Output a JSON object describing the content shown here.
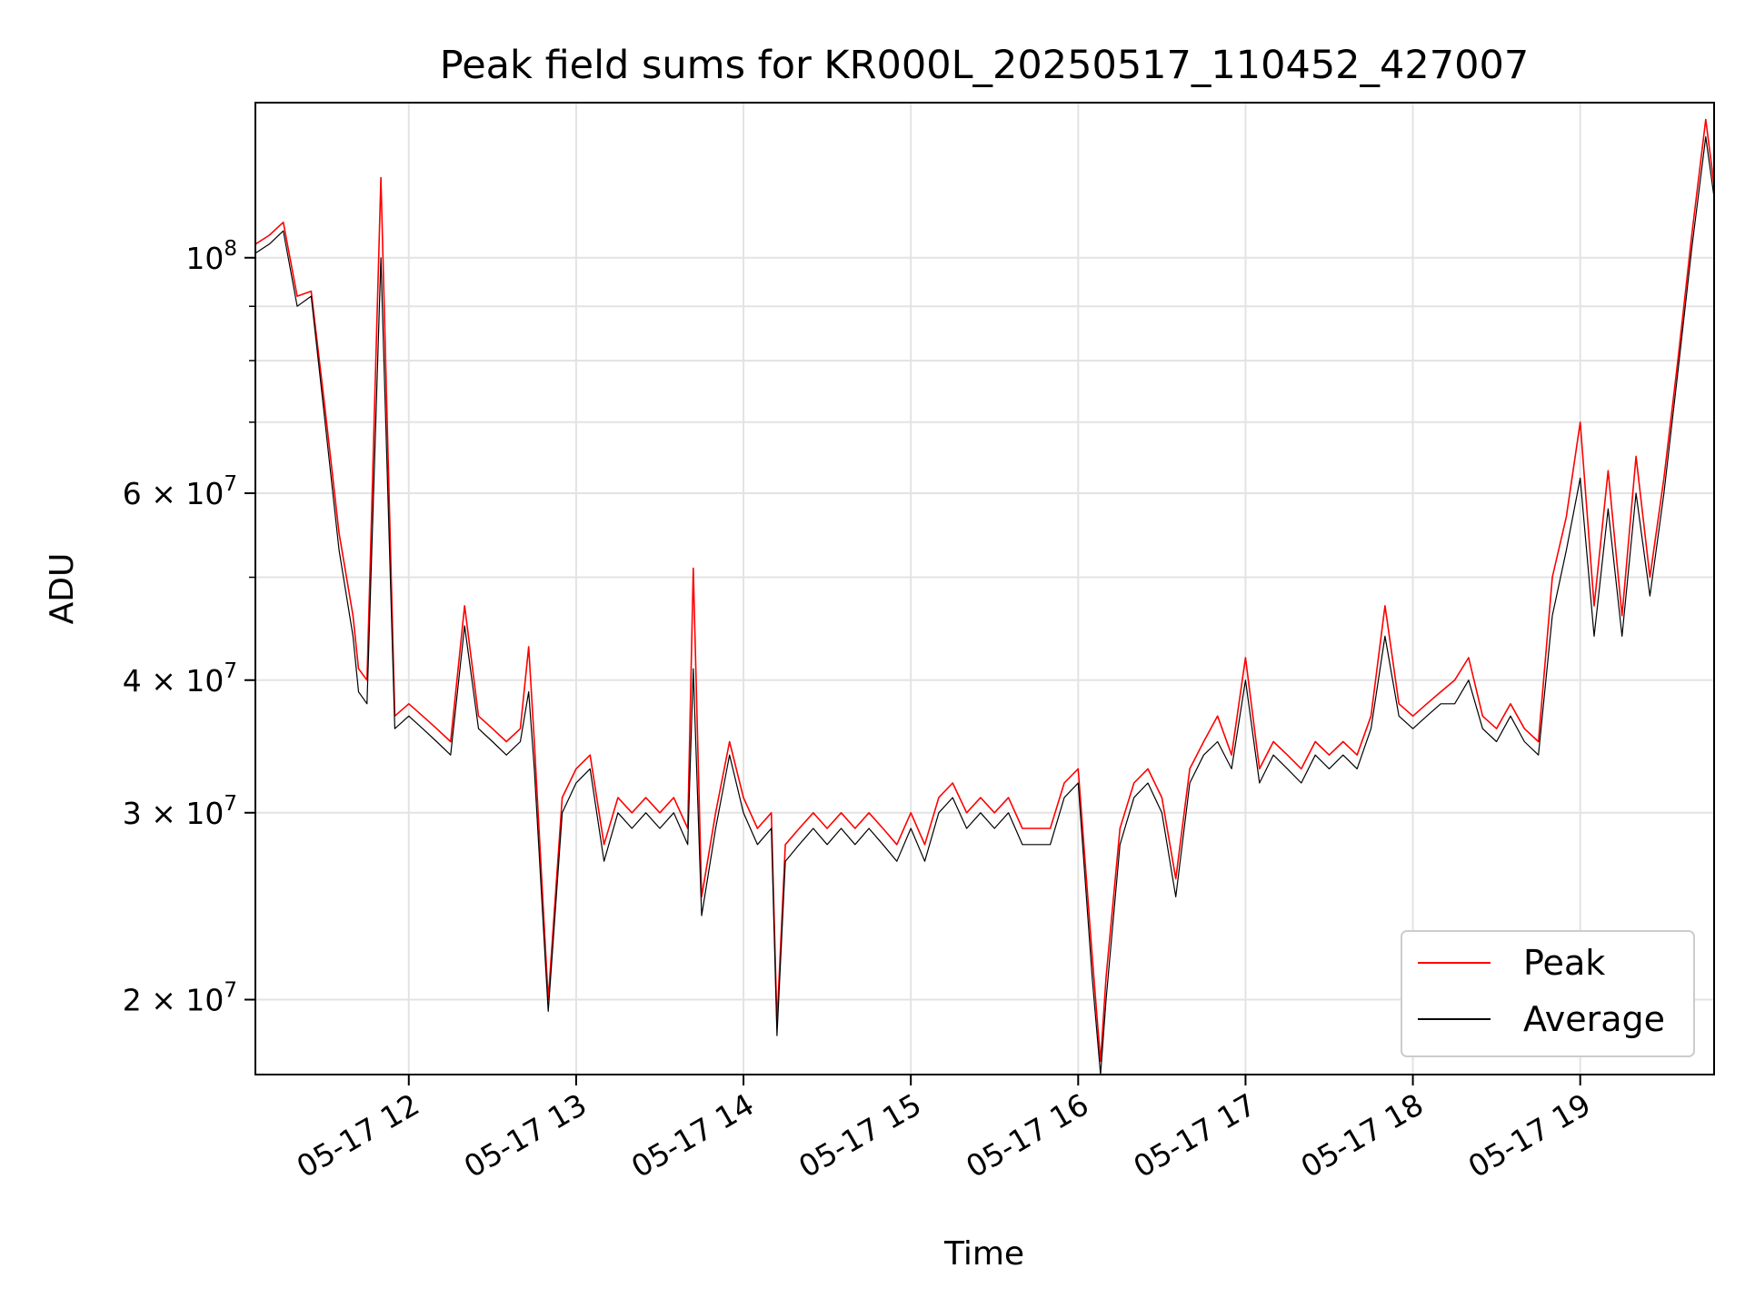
{
  "chart_data": {
    "type": "line",
    "title": "Peak field sums for KR000L_20250517_110452_427007",
    "xlabel": "Time",
    "ylabel": "ADU",
    "yscale": "log",
    "xlim": [
      "05-17 11:05",
      "05-17 19:48"
    ],
    "ylim": [
      17000000,
      140000000
    ],
    "grid": true,
    "legend_position": "lower right",
    "x_ticks": [
      "05-17 12",
      "05-17 13",
      "05-17 14",
      "05-17 15",
      "05-17 16",
      "05-17 17",
      "05-17 18",
      "05-17 19"
    ],
    "y_tick_labels": [
      {
        "value": 100000000,
        "mantissa": "10",
        "exp": "8",
        "sci": false
      },
      {
        "value": 60000000,
        "mantissa": "6 × 10",
        "exp": "7",
        "sci": true
      },
      {
        "value": 40000000,
        "mantissa": "4 × 10",
        "exp": "7",
        "sci": true
      },
      {
        "value": 30000000,
        "mantissa": "3 × 10",
        "exp": "7",
        "sci": true
      },
      {
        "value": 20000000,
        "mantissa": "2 × 10",
        "exp": "7",
        "sci": true
      }
    ],
    "y_minor_gridlines": [
      20000000,
      30000000,
      40000000,
      50000000,
      60000000,
      70000000,
      80000000,
      90000000,
      100000000
    ],
    "x": [
      "05-17 11:05",
      "05-17 11:10",
      "05-17 11:15",
      "05-17 11:20",
      "05-17 11:25",
      "05-17 11:30",
      "05-17 11:35",
      "05-17 11:40",
      "05-17 11:42",
      "05-17 11:45",
      "05-17 11:50",
      "05-17 11:55",
      "05-17 12:00",
      "05-17 12:05",
      "05-17 12:10",
      "05-17 12:15",
      "05-17 12:20",
      "05-17 12:25",
      "05-17 12:30",
      "05-17 12:35",
      "05-17 12:40",
      "05-17 12:43",
      "05-17 12:45",
      "05-17 12:50",
      "05-17 12:55",
      "05-17 13:00",
      "05-17 13:05",
      "05-17 13:10",
      "05-17 13:15",
      "05-17 13:20",
      "05-17 13:25",
      "05-17 13:30",
      "05-17 13:35",
      "05-17 13:40",
      "05-17 13:42",
      "05-17 13:45",
      "05-17 13:50",
      "05-17 13:55",
      "05-17 14:00",
      "05-17 14:05",
      "05-17 14:10",
      "05-17 14:12",
      "05-17 14:15",
      "05-17 14:20",
      "05-17 14:25",
      "05-17 14:30",
      "05-17 14:35",
      "05-17 14:40",
      "05-17 14:45",
      "05-17 14:50",
      "05-17 14:55",
      "05-17 15:00",
      "05-17 15:05",
      "05-17 15:10",
      "05-17 15:15",
      "05-17 15:20",
      "05-17 15:25",
      "05-17 15:30",
      "05-17 15:35",
      "05-17 15:40",
      "05-17 15:45",
      "05-17 15:50",
      "05-17 15:55",
      "05-17 16:00",
      "05-17 16:05",
      "05-17 16:08",
      "05-17 16:10",
      "05-17 16:15",
      "05-17 16:20",
      "05-17 16:25",
      "05-17 16:30",
      "05-17 16:35",
      "05-17 16:40",
      "05-17 16:45",
      "05-17 16:50",
      "05-17 16:55",
      "05-17 17:00",
      "05-17 17:05",
      "05-17 17:10",
      "05-17 17:15",
      "05-17 17:20",
      "05-17 17:25",
      "05-17 17:30",
      "05-17 17:35",
      "05-17 17:40",
      "05-17 17:45",
      "05-17 17:50",
      "05-17 17:55",
      "05-17 18:00",
      "05-17 18:05",
      "05-17 18:10",
      "05-17 18:15",
      "05-17 18:20",
      "05-17 18:25",
      "05-17 18:30",
      "05-17 18:35",
      "05-17 18:40",
      "05-17 18:45",
      "05-17 18:50",
      "05-17 18:55",
      "05-17 19:00",
      "05-17 19:05",
      "05-17 19:10",
      "05-17 19:15",
      "05-17 19:20",
      "05-17 19:25",
      "05-17 19:30",
      "05-17 19:35",
      "05-17 19:40",
      "05-17 19:45",
      "05-17 19:48"
    ],
    "series": [
      {
        "name": "Peak",
        "color": "#ff0000",
        "values": [
          103000000,
          105000000,
          108000000,
          92000000,
          93000000,
          72000000,
          55000000,
          46000000,
          41000000,
          40000000,
          119000000,
          37000000,
          38000000,
          37000000,
          36000000,
          35000000,
          47000000,
          37000000,
          36000000,
          35000000,
          36000000,
          43000000,
          35000000,
          20000000,
          31000000,
          33000000,
          34000000,
          28000000,
          31000000,
          30000000,
          31000000,
          30000000,
          31000000,
          29000000,
          51000000,
          25000000,
          30000000,
          35000000,
          31000000,
          29000000,
          30000000,
          19000000,
          28000000,
          29000000,
          30000000,
          29000000,
          30000000,
          29000000,
          30000000,
          29000000,
          28000000,
          30000000,
          28000000,
          31000000,
          32000000,
          30000000,
          31000000,
          30000000,
          31000000,
          29000000,
          29000000,
          29000000,
          32000000,
          33000000,
          22000000,
          17500000,
          21000000,
          29000000,
          32000000,
          33000000,
          31000000,
          26000000,
          33000000,
          35000000,
          37000000,
          34000000,
          42000000,
          33000000,
          35000000,
          34000000,
          33000000,
          35000000,
          34000000,
          35000000,
          34000000,
          37000000,
          47000000,
          38000000,
          37000000,
          38000000,
          39000000,
          40000000,
          42000000,
          37000000,
          36000000,
          38000000,
          36000000,
          35000000,
          50000000,
          57000000,
          70000000,
          47000000,
          63000000,
          46000000,
          65000000,
          50000000,
          62000000,
          80000000,
          105000000,
          135000000,
          117000000
        ]
      },
      {
        "name": "Average",
        "color": "#000000",
        "values": [
          101000000,
          103000000,
          106000000,
          90000000,
          92000000,
          70000000,
          53000000,
          44000000,
          39000000,
          38000000,
          100000000,
          36000000,
          37000000,
          36000000,
          35000000,
          34000000,
          45000000,
          36000000,
          35000000,
          34000000,
          35000000,
          39000000,
          33000000,
          19500000,
          30000000,
          32000000,
          33000000,
          27000000,
          30000000,
          29000000,
          30000000,
          29000000,
          30000000,
          28000000,
          41000000,
          24000000,
          29000000,
          34000000,
          30000000,
          28000000,
          29000000,
          18500000,
          27000000,
          28000000,
          29000000,
          28000000,
          29000000,
          28000000,
          29000000,
          28000000,
          27000000,
          29000000,
          27000000,
          30000000,
          31000000,
          29000000,
          30000000,
          29000000,
          30000000,
          28000000,
          28000000,
          28000000,
          31000000,
          32000000,
          21000000,
          17000000,
          20000000,
          28000000,
          31000000,
          32000000,
          30000000,
          25000000,
          32000000,
          34000000,
          35000000,
          33000000,
          40000000,
          32000000,
          34000000,
          33000000,
          32000000,
          34000000,
          33000000,
          34000000,
          33000000,
          36000000,
          44000000,
          37000000,
          36000000,
          37000000,
          38000000,
          38000000,
          40000000,
          36000000,
          35000000,
          37000000,
          35000000,
          34000000,
          46000000,
          53000000,
          62000000,
          44000000,
          58000000,
          44000000,
          60000000,
          48000000,
          60000000,
          78000000,
          102000000,
          130000000,
          114000000
        ]
      }
    ]
  }
}
